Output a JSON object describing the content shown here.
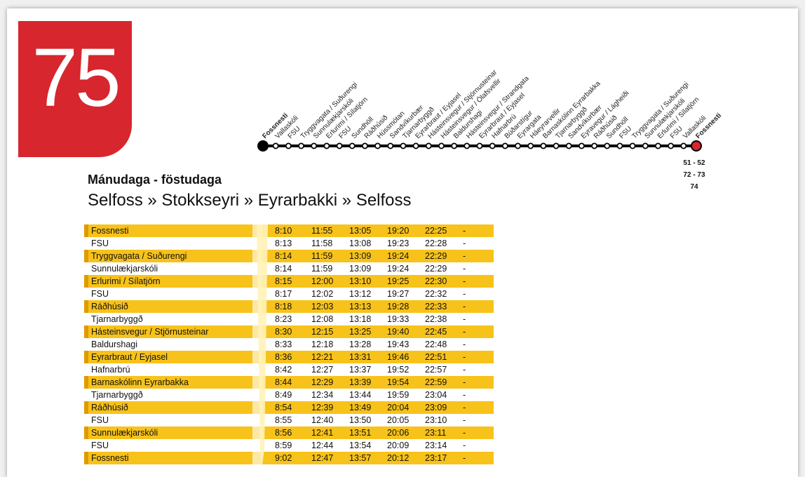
{
  "route": {
    "number": "75",
    "badge_color": "#d7262d"
  },
  "schedule": {
    "days": "Mánudaga - föstudaga",
    "direction": "Selfoss » Stokkseyri » Eyrarbakki » Selfoss"
  },
  "line_stops": [
    "Fossnesti",
    "Vallaskóli",
    "FSU",
    "Tryggvagata / Suðurengi",
    "Sunnulækjarskóli",
    "Erlurimi / Sílatjörn",
    "FSU",
    "Sundhöll",
    "Ráðhúsið",
    "Hússmótan",
    "Sandvíkurbær",
    "Tjarnarbyggð",
    "Eyrarbraut / Eyjasel",
    "Hásteinsvegur / Stjörnusteinar",
    "Hásteinsvegur / Ólafsvellir",
    "Baldurshagi",
    "Hásteinsvegur / Strandgata",
    "Eyrarbraut / Eyjasel",
    "Hafnarbrú",
    "Búðarstígur",
    "Eyrargata",
    "Háeyrarvellir",
    "Barnaskólinn Eyrarbakka",
    "Tjarnarbyggð",
    "Sandvíkurbær",
    "Eyravegur / Lágheiði",
    "Ráðhúsið",
    "Sundhöll",
    "FSU",
    "Tryggvagata / Suðurengi",
    "Sunnulækjarskóli",
    "Erlurimi / Sílatjörn",
    "FSU",
    "Vallaskóli",
    "Fossnesti"
  ],
  "connections": [
    "51 - 52",
    "72 - 73",
    "74"
  ],
  "timetable": [
    {
      "stop": "Fossnesti",
      "times": [
        "8:10",
        "11:55",
        "13:05",
        "19:20",
        "22:25"
      ],
      "last": "-"
    },
    {
      "stop": "FSU",
      "times": [
        "8:13",
        "11:58",
        "13:08",
        "19:23",
        "22:28"
      ],
      "last": "-"
    },
    {
      "stop": "Tryggvagata / Suðurengi",
      "times": [
        "8:14",
        "11:59",
        "13:09",
        "19:24",
        "22:29"
      ],
      "last": "-"
    },
    {
      "stop": "Sunnulækjarskóli",
      "times": [
        "8:14",
        "11:59",
        "13:09",
        "19:24",
        "22:29"
      ],
      "last": "-"
    },
    {
      "stop": "Erlurimi / Sílatjörn",
      "times": [
        "8:15",
        "12:00",
        "13:10",
        "19:25",
        "22:30"
      ],
      "last": "-"
    },
    {
      "stop": "FSU",
      "times": [
        "8:17",
        "12:02",
        "13:12",
        "19:27",
        "22:32"
      ],
      "last": "-"
    },
    {
      "stop": "Ráðhúsið",
      "times": [
        "8:18",
        "12:03",
        "13:13",
        "19:28",
        "22:33"
      ],
      "last": "-"
    },
    {
      "stop": "Tjarnarbyggð",
      "times": [
        "8:23",
        "12:08",
        "13:18",
        "19:33",
        "22:38"
      ],
      "last": "-"
    },
    {
      "stop": "Hásteinsvegur / Stjörnusteinar",
      "times": [
        "8:30",
        "12:15",
        "13:25",
        "19:40",
        "22:45"
      ],
      "last": "-"
    },
    {
      "stop": "Baldurshagi",
      "times": [
        "8:33",
        "12:18",
        "13:28",
        "19:43",
        "22:48"
      ],
      "last": "-"
    },
    {
      "stop": "Eyrarbraut / Eyjasel",
      "times": [
        "8:36",
        "12:21",
        "13:31",
        "19:46",
        "22:51"
      ],
      "last": "-"
    },
    {
      "stop": "Hafnarbrú",
      "times": [
        "8:42",
        "12:27",
        "13:37",
        "19:52",
        "22:57"
      ],
      "last": "-"
    },
    {
      "stop": "Barnaskólinn Eyrarbakka",
      "times": [
        "8:44",
        "12:29",
        "13:39",
        "19:54",
        "22:59"
      ],
      "last": "-"
    },
    {
      "stop": "Tjarnarbyggð",
      "times": [
        "8:49",
        "12:34",
        "13:44",
        "19:59",
        "23:04"
      ],
      "last": "-"
    },
    {
      "stop": "Ráðhúsið",
      "times": [
        "8:54",
        "12:39",
        "13:49",
        "20:04",
        "23:09"
      ],
      "last": "-"
    },
    {
      "stop": "FSU",
      "times": [
        "8:55",
        "12:40",
        "13:50",
        "20:05",
        "23:10"
      ],
      "last": "-"
    },
    {
      "stop": "Sunnulækjarskóli",
      "times": [
        "8:56",
        "12:41",
        "13:51",
        "20:06",
        "23:11"
      ],
      "last": "-"
    },
    {
      "stop": "FSU",
      "times": [
        "8:59",
        "12:44",
        "13:54",
        "20:09",
        "23:14"
      ],
      "last": "-"
    },
    {
      "stop": "Fossnesti",
      "times": [
        "9:02",
        "12:47",
        "13:57",
        "20:12",
        "23:17"
      ],
      "last": "-"
    }
  ],
  "colors": {
    "highlight_row": "#f7c21a",
    "row_marker": "#e09a00",
    "end_stop": "#d7262d"
  }
}
